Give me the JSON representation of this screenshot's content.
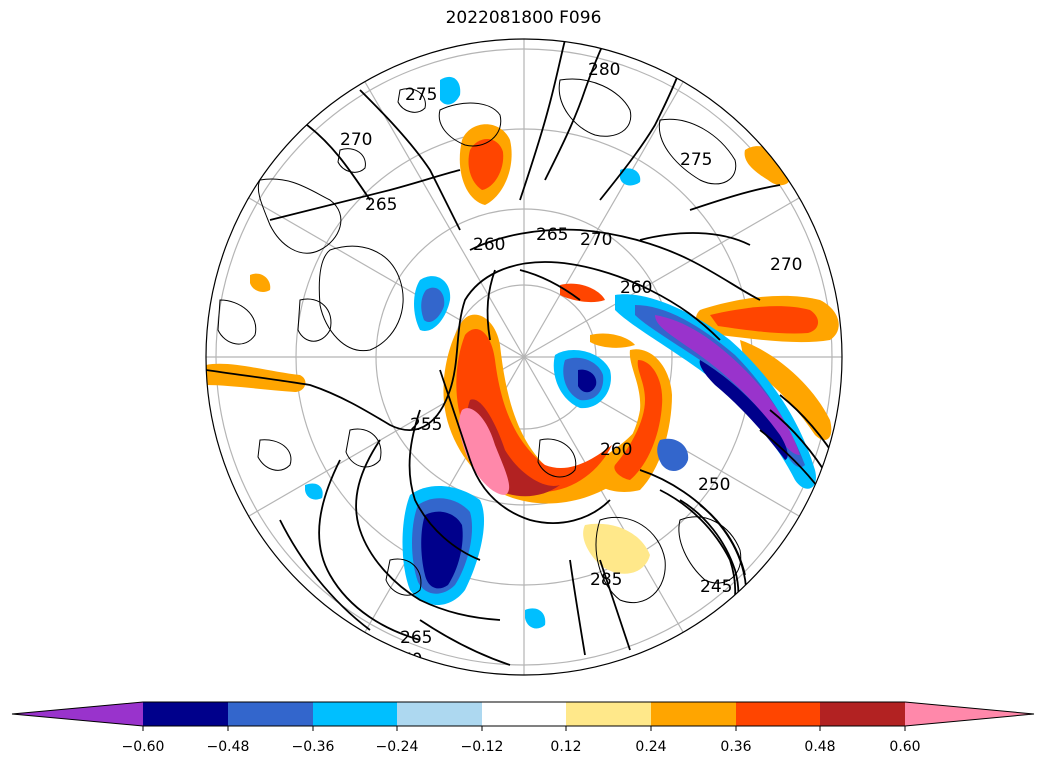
{
  "title": "2022081800 F096",
  "colorbar": {
    "colors": [
      "#9933cc",
      "#00008b",
      "#3366cc",
      "#00bfff",
      "#add8f0",
      "#ffffff",
      "#ffe88a",
      "#ffa500",
      "#ff4500",
      "#b22222",
      "#ff88aa"
    ],
    "ticks": [
      "−0.60",
      "−0.48",
      "−0.36",
      "−0.24",
      "−0.12",
      "0.12",
      "0.24",
      "0.36",
      "0.48",
      "0.60"
    ]
  },
  "contour_labels": [
    "255",
    "260",
    "265",
    "270",
    "275",
    "280",
    "250",
    "245",
    "285"
  ]
}
